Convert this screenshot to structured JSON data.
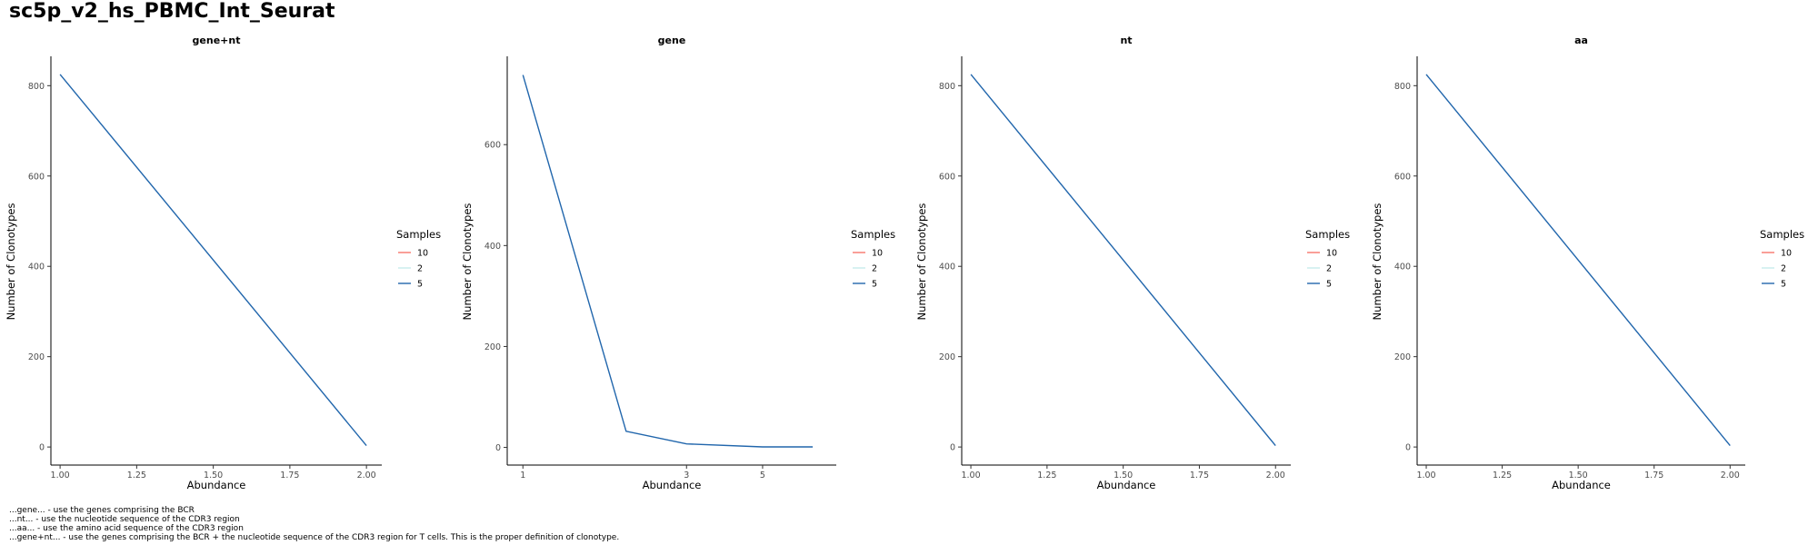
{
  "page": {
    "title": "sc5p_v2_hs_PBMC_Int_Seurat"
  },
  "legend": {
    "title": "Samples",
    "entries": [
      {
        "label": "10",
        "color": "#F8766D"
      },
      {
        "label": "2",
        "color": "#C7ECEC"
      },
      {
        "label": "5",
        "color": "#2166AC"
      }
    ]
  },
  "footnotes": [
    "...gene... - use the genes comprising the BCR",
    "...nt... - use the nucleotide sequence of the CDR3 region",
    "...aa... - use the amino acid sequence of the CDR3 region",
    "...gene+nt... - use the genes comprising the BCR + the nucleotide sequence of the CDR3 region for T cells. This is the proper definition of clonotype."
  ],
  "chart_data": [
    {
      "type": "line",
      "title": "gene+nt",
      "xlabel": "Abundance",
      "ylabel": "Number of Clonotypes",
      "x_scale": "linear",
      "xlim": [
        0.97,
        2.05
      ],
      "ylim": [
        -40,
        865
      ],
      "x_ticks": [
        1.0,
        1.25,
        1.5,
        1.75,
        2.0
      ],
      "x_tick_labels": [
        "1.00",
        "1.25",
        "1.50",
        "1.75",
        "2.00"
      ],
      "y_ticks": [
        0,
        200,
        400,
        600,
        800
      ],
      "y_tick_labels": [
        "0",
        "200",
        "400",
        "600",
        "800"
      ],
      "grid": false,
      "legend": "right",
      "series": [
        {
          "name": "5",
          "color": "#2166AC",
          "x": [
            1,
            2
          ],
          "y": [
            825,
            3
          ]
        }
      ]
    },
    {
      "type": "line",
      "title": "gene",
      "xlabel": "Abundance",
      "ylabel": "Number of Clonotypes",
      "x_scale": "log",
      "xlim": [
        0.9,
        8.2
      ],
      "ylim": [
        -35,
        775
      ],
      "x_ticks": [
        1,
        3,
        5
      ],
      "x_tick_labels": [
        "1",
        "3",
        "5"
      ],
      "y_ticks": [
        0,
        200,
        400,
        600
      ],
      "y_tick_labels": [
        "0",
        "200",
        "400",
        "600"
      ],
      "grid": false,
      "legend": "right",
      "series": [
        {
          "name": "5",
          "color": "#2166AC",
          "x": [
            1,
            2,
            3,
            5,
            7
          ],
          "y": [
            738,
            32,
            7,
            1,
            1
          ]
        }
      ]
    },
    {
      "type": "line",
      "title": "nt",
      "xlabel": "Abundance",
      "ylabel": "Number of Clonotypes",
      "x_scale": "linear",
      "xlim": [
        0.97,
        2.05
      ],
      "ylim": [
        -40,
        865
      ],
      "x_ticks": [
        1.0,
        1.25,
        1.5,
        1.75,
        2.0
      ],
      "x_tick_labels": [
        "1.00",
        "1.25",
        "1.50",
        "1.75",
        "2.00"
      ],
      "y_ticks": [
        0,
        200,
        400,
        600,
        800
      ],
      "y_tick_labels": [
        "0",
        "200",
        "400",
        "600",
        "800"
      ],
      "grid": false,
      "legend": "right",
      "series": [
        {
          "name": "5",
          "color": "#2166AC",
          "x": [
            1,
            2
          ],
          "y": [
            825,
            3
          ]
        }
      ]
    },
    {
      "type": "line",
      "title": "aa",
      "xlabel": "Abundance",
      "ylabel": "Number of Clonotypes",
      "x_scale": "linear",
      "xlim": [
        0.97,
        2.05
      ],
      "ylim": [
        -40,
        865
      ],
      "x_ticks": [
        1.0,
        1.25,
        1.5,
        1.75,
        2.0
      ],
      "x_tick_labels": [
        "1.00",
        "1.25",
        "1.50",
        "1.75",
        "2.00"
      ],
      "y_ticks": [
        0,
        200,
        400,
        600,
        800
      ],
      "y_tick_labels": [
        "0",
        "200",
        "400",
        "600",
        "800"
      ],
      "grid": false,
      "legend": "right",
      "series": [
        {
          "name": "5",
          "color": "#2166AC",
          "x": [
            1,
            2
          ],
          "y": [
            825,
            3
          ]
        }
      ]
    }
  ]
}
